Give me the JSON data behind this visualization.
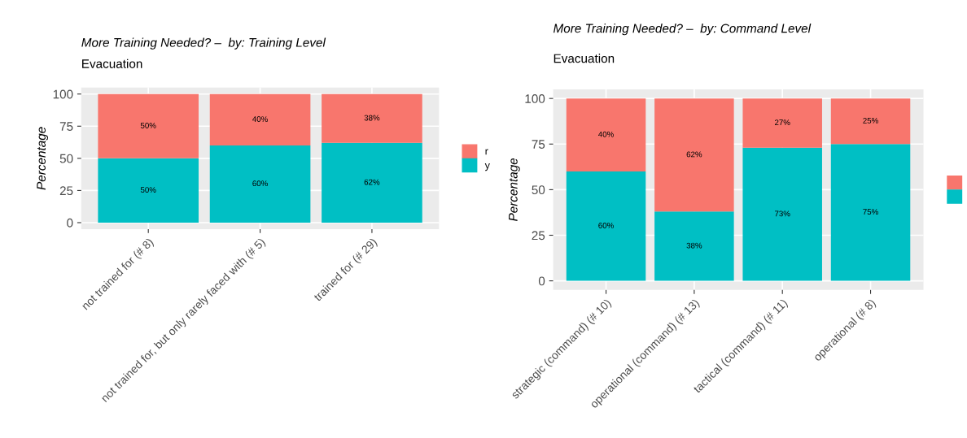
{
  "chart_data": [
    {
      "type": "bar",
      "stacked": true,
      "title": "More Training Needed? –  by: Training Level",
      "subtitle": "Evacuation",
      "ylabel": "Percentage",
      "categories": [
        "not trained for (# 8)",
        "not trained for, but only rarely faced with (# 5)",
        "trained for (# 29)"
      ],
      "ylim": [
        -5,
        105
      ],
      "yticks": [
        0,
        25,
        50,
        75,
        100
      ],
      "grid": true,
      "legend": "right",
      "series": [
        {
          "name": "y",
          "color": "#00bfc4",
          "values": [
            50,
            60,
            62
          ],
          "value_labels": [
            "50%",
            "60%",
            "62%"
          ]
        },
        {
          "name": "r",
          "color": "#f8766d",
          "values": [
            50,
            40,
            38
          ],
          "value_labels": [
            "50%",
            "40%",
            "38%"
          ]
        }
      ]
    },
    {
      "type": "bar",
      "stacked": true,
      "title": "More Training Needed? –  by: Command Level",
      "subtitle": "Evacuation",
      "ylabel": "Percentage",
      "categories": [
        "strategic (command) (# 10)",
        "operational (command) (# 13)",
        "tactical (command) (# 11)",
        "operational (# 8)"
      ],
      "ylim": [
        -5,
        105
      ],
      "yticks": [
        0,
        25,
        50,
        75,
        100
      ],
      "grid": true,
      "legend": "right",
      "series": [
        {
          "color": "#00bfc4",
          "values": [
            60,
            38,
            73,
            75
          ],
          "value_labels": [
            "60%",
            "38%",
            "73%",
            "75%"
          ]
        },
        {
          "color": "#f8766d",
          "values": [
            40,
            62,
            27,
            25
          ],
          "value_labels": [
            "40%",
            "62%",
            "27%",
            "25%"
          ]
        }
      ]
    }
  ]
}
